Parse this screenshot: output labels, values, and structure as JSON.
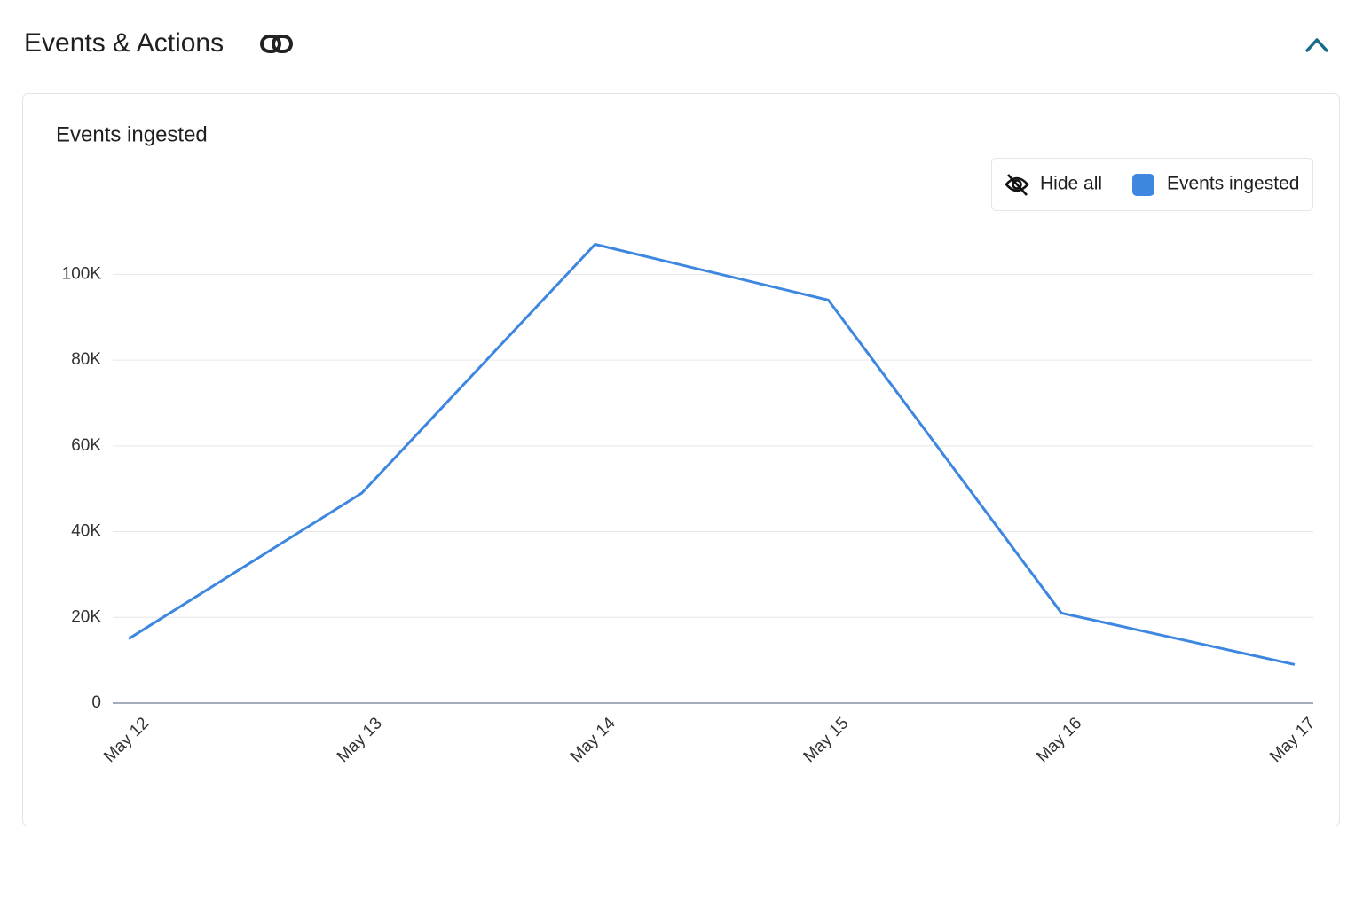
{
  "header": {
    "title": "Events & Actions"
  },
  "chart_data": {
    "type": "line",
    "title": "Events ingested",
    "legend_toggle": "Hide all",
    "categories": [
      "May 12",
      "May 13",
      "May 14",
      "May 15",
      "May 16",
      "May 17"
    ],
    "series": [
      {
        "name": "Events ingested",
        "color": "#3d87e0",
        "values": [
          15000,
          49000,
          107000,
          94000,
          21000,
          9000
        ]
      }
    ],
    "ylim": [
      0,
      110000
    ],
    "yticks": [
      0,
      {
        "value": 20000,
        "label": "20K"
      },
      {
        "value": 40000,
        "label": "40K"
      },
      {
        "value": 60000,
        "label": "60K"
      },
      {
        "value": 80000,
        "label": "80K"
      },
      {
        "value": 100000,
        "label": "100K"
      }
    ],
    "grid": true
  }
}
